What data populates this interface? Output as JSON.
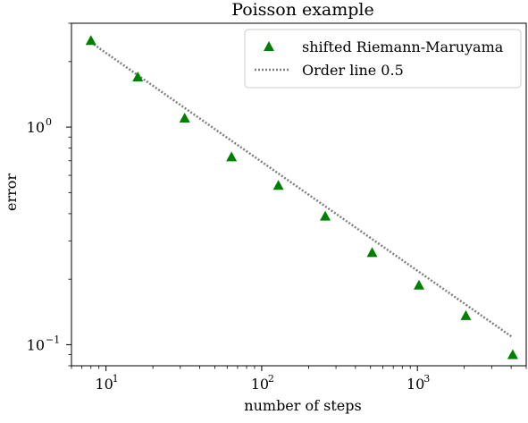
{
  "chart_data": {
    "type": "scatter",
    "title": "Poisson example",
    "xlabel": "number of steps",
    "ylabel": "error",
    "xscale": "log",
    "yscale": "log",
    "xlim": [
      6,
      5000
    ],
    "ylim": [
      0.08,
      3.0
    ],
    "grid": false,
    "legend_position": "top-right",
    "x_ticks": [
      {
        "value": 10,
        "base": "10",
        "exp": "1"
      },
      {
        "value": 100,
        "base": "10",
        "exp": "2"
      },
      {
        "value": 1000,
        "base": "10",
        "exp": "3"
      }
    ],
    "y_ticks": [
      {
        "value": 0.1,
        "base": "10",
        "exp": "−1"
      },
      {
        "value": 1,
        "base": "10",
        "exp": "0"
      }
    ],
    "series": [
      {
        "name": "shifted Riemann-Maruyama",
        "marker": "triangle",
        "color": "#008000",
        "x": [
          8,
          16,
          32,
          64,
          128,
          256,
          512,
          1024,
          2048,
          4096
        ],
        "y": [
          2.5,
          1.7,
          1.1,
          0.73,
          0.54,
          0.39,
          0.265,
          0.188,
          0.136,
          0.09
        ]
      },
      {
        "name": "Order line 0.5",
        "style": "dotted",
        "color": "#808080",
        "x": [
          8,
          4096
        ],
        "y": [
          2.45,
          0.108
        ]
      }
    ]
  }
}
